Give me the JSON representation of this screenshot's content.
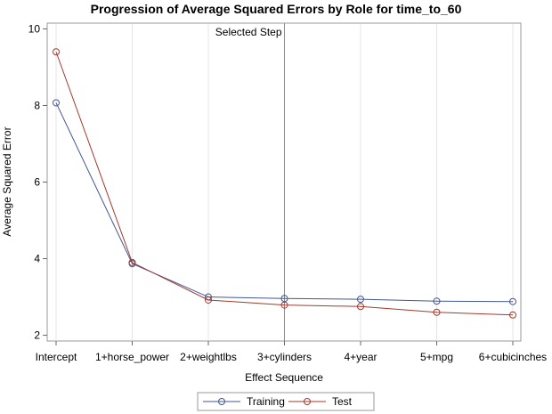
{
  "chart_data": {
    "type": "line",
    "title": "Progression of Average Squared Errors by Role for time_to_60",
    "xlabel": "Effect Sequence",
    "ylabel": "Average Squared Error",
    "categories": [
      "Intercept",
      "1+horse_power",
      "2+weightlbs",
      "3+cylinders",
      "4+year",
      "5+mpg",
      "6+cubicinches"
    ],
    "ylim": [
      1.85,
      10.15
    ],
    "yticks": [
      2,
      4,
      6,
      8,
      10
    ],
    "grid": "vertical",
    "legend_position": "bottom",
    "series": [
      {
        "name": "Training",
        "color": "#445694",
        "values": [
          8.07,
          3.87,
          3.0,
          2.96,
          2.94,
          2.89,
          2.88
        ]
      },
      {
        "name": "Test",
        "color": "#a23a2e",
        "values": [
          9.4,
          3.9,
          2.92,
          2.79,
          2.75,
          2.6,
          2.53
        ]
      }
    ],
    "annotation": {
      "text": "Selected Step",
      "category_index": 3
    }
  }
}
